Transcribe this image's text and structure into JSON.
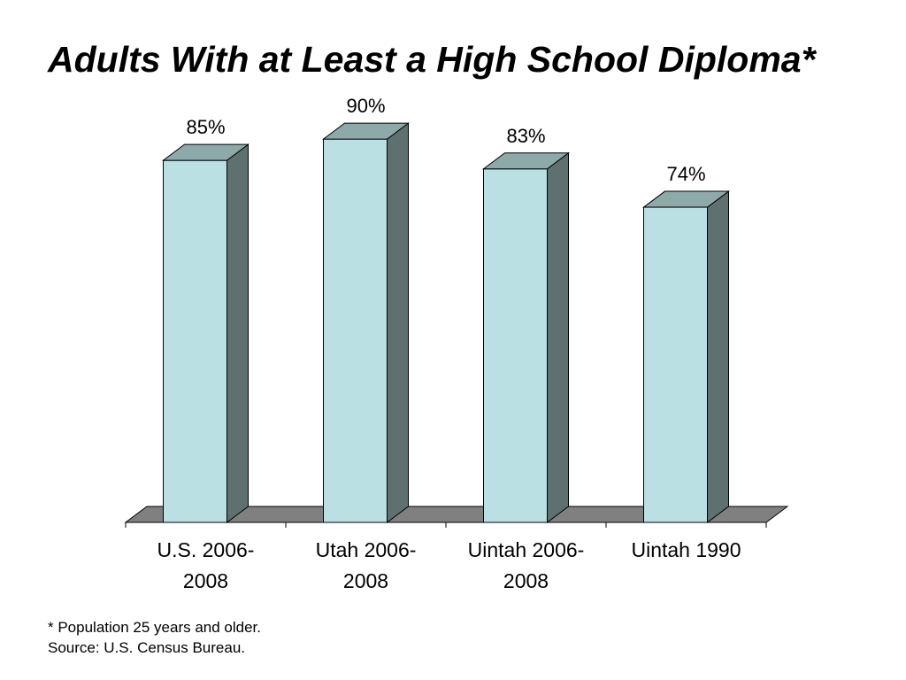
{
  "slide": {
    "title": "Adults With at Least a High School Diploma*",
    "footnotes": [
      "* Population 25 years and older.",
      "Source: U.S. Census Bureau."
    ]
  },
  "chart_data": {
    "type": "bar",
    "style": "3d-column",
    "title": "Adults With at Least a High School Diploma*",
    "xlabel": "",
    "ylabel": "",
    "categories": [
      [
        "U.S. 2006-",
        "2008"
      ],
      [
        "Utah 2006-",
        "2008"
      ],
      [
        "Uintah 2006-",
        "2008"
      ],
      [
        "Uintah 1990",
        ""
      ]
    ],
    "values": [
      85,
      90,
      83,
      74
    ],
    "data_labels": [
      "85%",
      "90%",
      "83%",
      "74%"
    ],
    "ylim": [
      0,
      100
    ],
    "grid": false,
    "legend": "none",
    "colors": {
      "bar_front": "#bbe0e3",
      "bar_top": "#8ea9aa",
      "bar_side": "#5e7070",
      "floor": "#808080",
      "outline": "#000000"
    }
  }
}
